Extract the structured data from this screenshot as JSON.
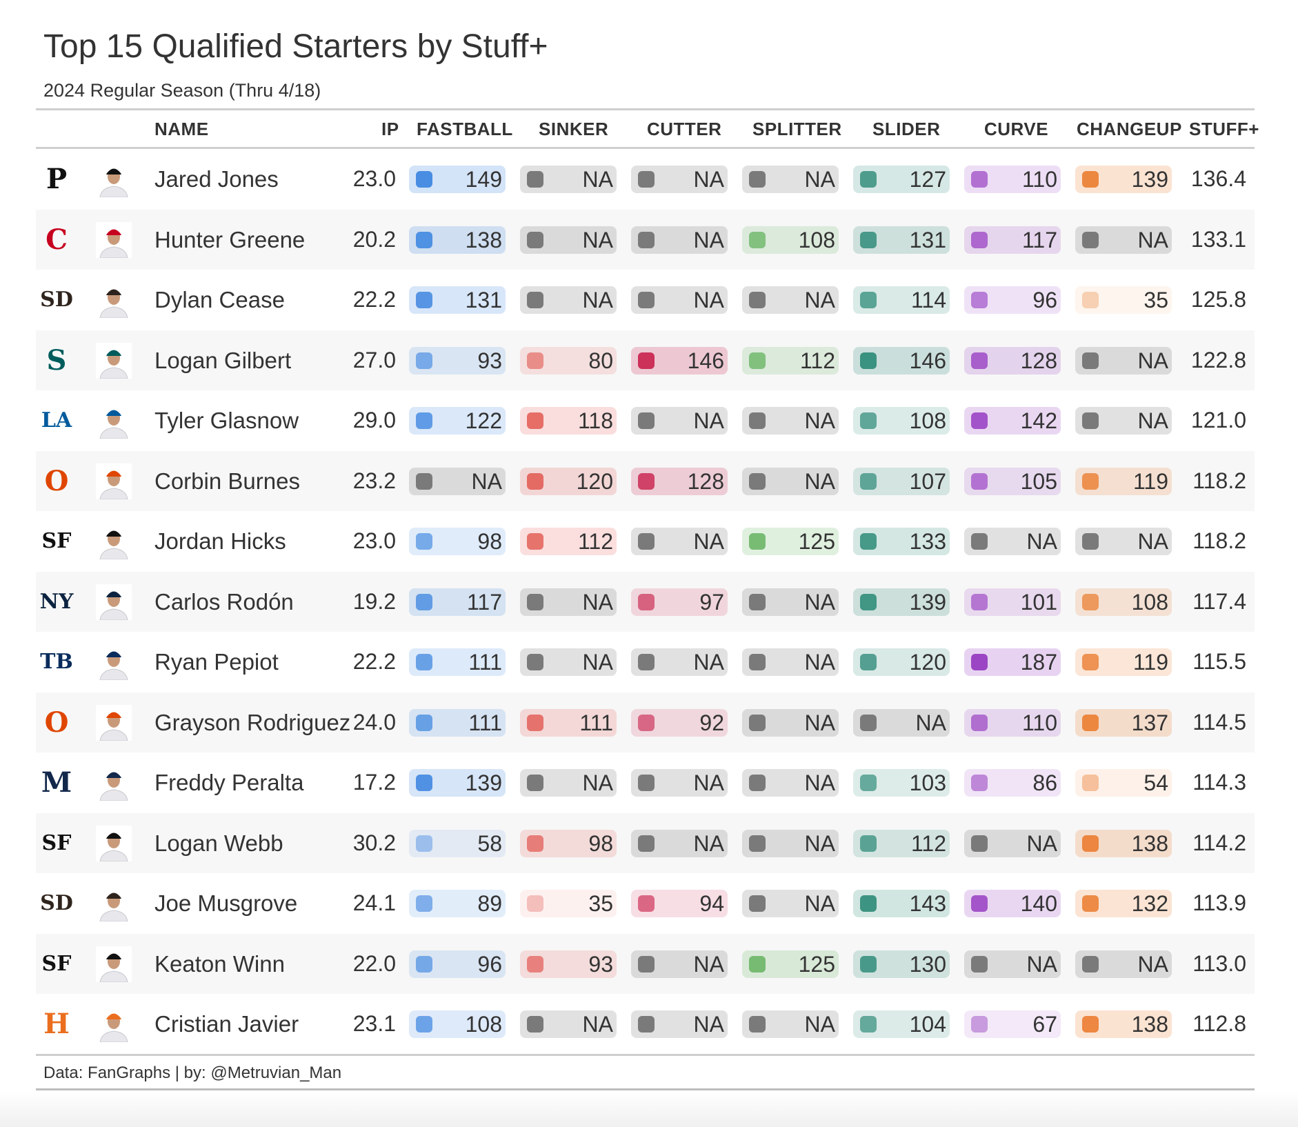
{
  "title": "Top 15 Qualified Starters by Stuff+",
  "subtitle": "2024 Regular Season (Thru 4/18)",
  "caption": "Data: FanGraphs | by: @Metruvian_Man",
  "columns": {
    "name": "NAME",
    "ip": "IP",
    "fastball": "FASTBALL",
    "sinker": "SINKER",
    "cutter": "CUTTER",
    "splitter": "SPLITTER",
    "slider": "SLIDER",
    "curve": "CURVE",
    "changeup": "CHANGEUP",
    "stuff": "STUFF+"
  },
  "pitch_order": [
    "fastball",
    "sinker",
    "cutter",
    "splitter",
    "slider",
    "curve",
    "changeup"
  ],
  "pitch_colors": {
    "fastball": "#3e86e0",
    "sinker": "#e04b44",
    "cutter": "#c9244f",
    "splitter": "#5fb05a",
    "slider": "#2e8b78",
    "curve": "#9b45c4",
    "changeup": "#ea7a2c",
    "na": "#7a7a7a"
  },
  "rows": [
    {
      "logo": "pirates-logo",
      "logo_text": "P",
      "logo_color": "#111111",
      "name": "Jared Jones",
      "ip": "23.0",
      "fastball": "149",
      "sinker": "NA",
      "cutter": "NA",
      "splitter": "NA",
      "slider": "127",
      "curve": "110",
      "changeup": "139",
      "stuff": "136.4"
    },
    {
      "logo": "reds-logo",
      "logo_text": "C",
      "logo_color": "#c6011f",
      "name": "Hunter Greene",
      "ip": "20.2",
      "fastball": "138",
      "sinker": "NA",
      "cutter": "NA",
      "splitter": "108",
      "slider": "131",
      "curve": "117",
      "changeup": "NA",
      "stuff": "133.1"
    },
    {
      "logo": "padres-logo",
      "logo_text": "SD",
      "logo_color": "#2f241d",
      "name": "Dylan Cease",
      "ip": "22.2",
      "fastball": "131",
      "sinker": "NA",
      "cutter": "NA",
      "splitter": "NA",
      "slider": "114",
      "curve": "96",
      "changeup": "35",
      "stuff": "125.8"
    },
    {
      "logo": "mariners-logo",
      "logo_text": "S",
      "logo_color": "#005c5c",
      "name": "Logan Gilbert",
      "ip": "27.0",
      "fastball": "93",
      "sinker": "80",
      "cutter": "146",
      "splitter": "112",
      "slider": "146",
      "curve": "128",
      "changeup": "NA",
      "stuff": "122.8"
    },
    {
      "logo": "dodgers-logo",
      "logo_text": "LA",
      "logo_color": "#005a9c",
      "name": "Tyler Glasnow",
      "ip": "29.0",
      "fastball": "122",
      "sinker": "118",
      "cutter": "NA",
      "splitter": "NA",
      "slider": "108",
      "curve": "142",
      "changeup": "NA",
      "stuff": "121.0"
    },
    {
      "logo": "orioles-logo",
      "logo_text": "O",
      "logo_color": "#df4601",
      "name": "Corbin Burnes",
      "ip": "23.2",
      "fastball": "NA",
      "sinker": "120",
      "cutter": "128",
      "splitter": "NA",
      "slider": "107",
      "curve": "105",
      "changeup": "119",
      "stuff": "118.2"
    },
    {
      "logo": "giants-logo",
      "logo_text": "SF",
      "logo_color": "#111111",
      "name": "Jordan Hicks",
      "ip": "23.0",
      "fastball": "98",
      "sinker": "112",
      "cutter": "NA",
      "splitter": "125",
      "slider": "133",
      "curve": "NA",
      "changeup": "NA",
      "stuff": "118.2"
    },
    {
      "logo": "yankees-logo",
      "logo_text": "NY",
      "logo_color": "#0c2340",
      "name": "Carlos Rodón",
      "ip": "19.2",
      "fastball": "117",
      "sinker": "NA",
      "cutter": "97",
      "splitter": "NA",
      "slider": "139",
      "curve": "101",
      "changeup": "108",
      "stuff": "117.4"
    },
    {
      "logo": "rays-logo",
      "logo_text": "TB",
      "logo_color": "#092c5c",
      "name": "Ryan Pepiot",
      "ip": "22.2",
      "fastball": "111",
      "sinker": "NA",
      "cutter": "NA",
      "splitter": "NA",
      "slider": "120",
      "curve": "187",
      "changeup": "119",
      "stuff": "115.5"
    },
    {
      "logo": "orioles-logo",
      "logo_text": "O",
      "logo_color": "#df4601",
      "name": "Grayson Rodriguez",
      "ip": "24.0",
      "fastball": "111",
      "sinker": "111",
      "cutter": "92",
      "splitter": "NA",
      "slider": "NA",
      "curve": "110",
      "changeup": "137",
      "stuff": "114.5"
    },
    {
      "logo": "brewers-logo",
      "logo_text": "M",
      "logo_color": "#12284b",
      "name": "Freddy Peralta",
      "ip": "17.2",
      "fastball": "139",
      "sinker": "NA",
      "cutter": "NA",
      "splitter": "NA",
      "slider": "103",
      "curve": "86",
      "changeup": "54",
      "stuff": "114.3"
    },
    {
      "logo": "giants-logo",
      "logo_text": "SF",
      "logo_color": "#111111",
      "name": "Logan Webb",
      "ip": "30.2",
      "fastball": "58",
      "sinker": "98",
      "cutter": "NA",
      "splitter": "NA",
      "slider": "112",
      "curve": "NA",
      "changeup": "138",
      "stuff": "114.2"
    },
    {
      "logo": "padres-logo",
      "logo_text": "SD",
      "logo_color": "#2f241d",
      "name": "Joe Musgrove",
      "ip": "24.1",
      "fastball": "89",
      "sinker": "35",
      "cutter": "94",
      "splitter": "NA",
      "slider": "143",
      "curve": "140",
      "changeup": "132",
      "stuff": "113.9"
    },
    {
      "logo": "giants-logo",
      "logo_text": "SF",
      "logo_color": "#111111",
      "name": "Keaton Winn",
      "ip": "22.0",
      "fastball": "96",
      "sinker": "93",
      "cutter": "NA",
      "splitter": "125",
      "slider": "130",
      "curve": "NA",
      "changeup": "NA",
      "stuff": "113.0"
    },
    {
      "logo": "astros-logo",
      "logo_text": "H",
      "logo_color": "#eb6e1f",
      "name": "Cristian Javier",
      "ip": "23.1",
      "fastball": "108",
      "sinker": "NA",
      "cutter": "NA",
      "splitter": "NA",
      "slider": "104",
      "curve": "67",
      "changeup": "138",
      "stuff": "112.8"
    }
  ]
}
